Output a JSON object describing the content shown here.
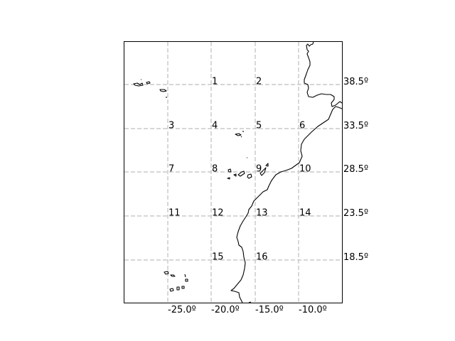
{
  "map": {
    "grid_color": "#c8c8c8",
    "coast_color": "#000000",
    "lon_labels": [
      "-25.0º",
      "-20.0º",
      "-15.0º",
      "-10.0º"
    ],
    "lat_labels": [
      "38.5º",
      "33.5º",
      "28.5º",
      "23.5º",
      "18.5º"
    ],
    "cells": [
      {
        "id": "1",
        "col": 1,
        "row": 0
      },
      {
        "id": "2",
        "col": 2,
        "row": 0
      },
      {
        "id": "3",
        "col": 0,
        "row": 1
      },
      {
        "id": "4",
        "col": 1,
        "row": 1
      },
      {
        "id": "5",
        "col": 2,
        "row": 1
      },
      {
        "id": "6",
        "col": 3,
        "row": 1
      },
      {
        "id": "7",
        "col": 0,
        "row": 2
      },
      {
        "id": "8",
        "col": 1,
        "row": 2
      },
      {
        "id": "9",
        "col": 2,
        "row": 2
      },
      {
        "id": "10",
        "col": 3,
        "row": 2
      },
      {
        "id": "11",
        "col": 0,
        "row": 3
      },
      {
        "id": "12",
        "col": 1,
        "row": 3
      },
      {
        "id": "13",
        "col": 2,
        "row": 3
      },
      {
        "id": "14",
        "col": 3,
        "row": 3
      },
      {
        "id": "15",
        "col": 1,
        "row": 4
      },
      {
        "id": "16",
        "col": 2,
        "row": 4
      }
    ]
  }
}
